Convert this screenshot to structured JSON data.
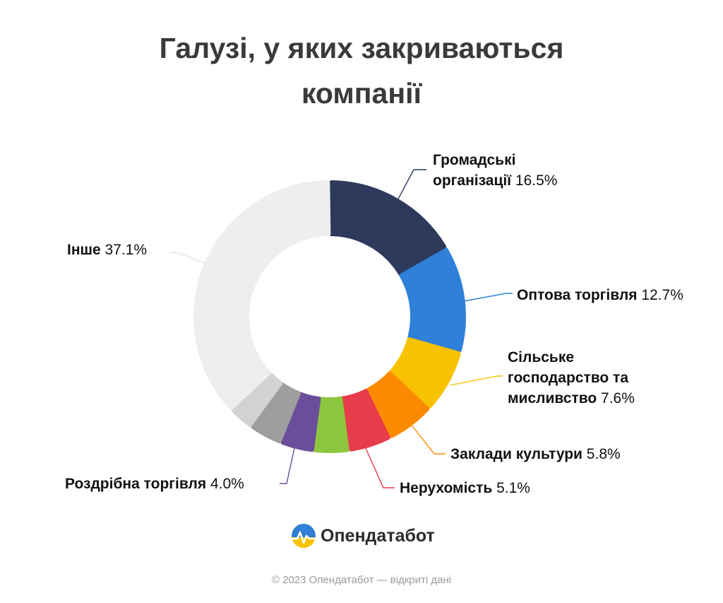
{
  "title": {
    "line1": "Галузі, у яких закриваються",
    "line2": "компанії"
  },
  "chart_data": {
    "type": "pie",
    "style": "donut",
    "title": "Галузі, у яких закриваються компанії",
    "unit": "%",
    "slices": [
      {
        "key": "gromadski",
        "name_lines": [
          "Громадські",
          "організації"
        ],
        "value": 16.5,
        "value_label": "16.5%",
        "color": "#2e3a5c"
      },
      {
        "key": "optova",
        "name_lines": [
          "Оптова торгівля"
        ],
        "value": 12.7,
        "value_label": "12.7%",
        "color": "#2f80d8"
      },
      {
        "key": "silske",
        "name_lines": [
          "Сільське",
          "господарство та",
          "мисливство"
        ],
        "value": 7.6,
        "value_label": "7.6%",
        "color": "#f8c200"
      },
      {
        "key": "kultura",
        "name_lines": [
          "Заклади культури"
        ],
        "value": 5.8,
        "value_label": "5.8%",
        "color": "#fb8a00"
      },
      {
        "key": "nerukhomist",
        "name_lines": [
          "Нерухомість"
        ],
        "value": 5.1,
        "value_label": "5.1%",
        "color": "#e73c4b"
      },
      {
        "key": "unlabeled_green",
        "name_lines": [],
        "value": 4.2,
        "value_label": "",
        "color": "#8dc63f"
      },
      {
        "key": "rozdribna",
        "name_lines": [
          "Роздрібна торгівля"
        ],
        "value": 4.0,
        "value_label": "4.0%",
        "color": "#6b4e9b"
      },
      {
        "key": "unlabeled_gray",
        "name_lines": [],
        "value": 4.0,
        "value_label": "",
        "color": "#9e9e9e"
      },
      {
        "key": "unlabeled_lightgray",
        "name_lines": [],
        "value": 3.0,
        "value_label": "",
        "color": "#d2d2d2"
      },
      {
        "key": "inshe",
        "name_lines": [
          "Інше"
        ],
        "value": 37.1,
        "value_label": "37.1%",
        "color": "#eeeeee"
      }
    ]
  },
  "brand": {
    "name": "Опендатабот"
  },
  "footer": {
    "text": "© 2023 Опендатабот — відкриті дані"
  }
}
